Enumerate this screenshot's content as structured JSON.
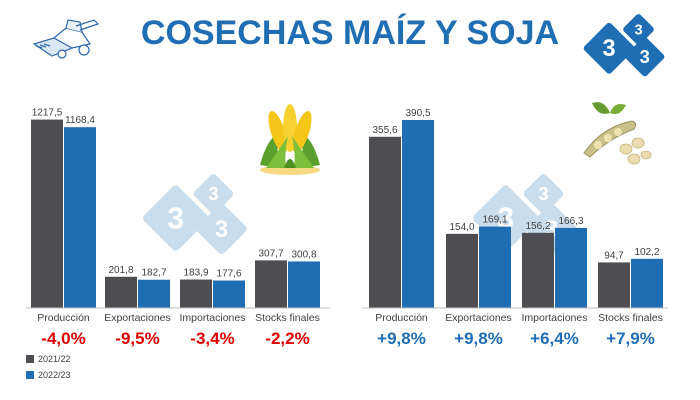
{
  "header": {
    "title": "COSECHAS MAÍZ Y SOJA"
  },
  "logo": {
    "digits": [
      "3",
      "3",
      "3"
    ],
    "color": "#1f6eb3"
  },
  "colors": {
    "title": "#1f6eb3",
    "series_2021": "#4d4d52",
    "series_2022": "#1f6eb3",
    "neg": "#e00000",
    "pos": "#1f6eb3",
    "label": "#404040",
    "watermark": "#9fc2e0"
  },
  "legend": {
    "items": [
      "2021/22",
      "2022/23"
    ]
  },
  "icons": {
    "harvester": "harvester-icon",
    "corn": "corn-icon",
    "soy": "soybean-icon"
  },
  "chart_data": [
    {
      "type": "bar",
      "title": "",
      "categories": [
        "Producción",
        "Exportaciones",
        "Importaciones",
        "Stocks finales"
      ],
      "series": [
        {
          "name": "2021/22",
          "values": [
            1217.5,
            201.8,
            183.9,
            307.7
          ],
          "labels": [
            "1217,5",
            "201,8",
            "183,9",
            "307,7"
          ]
        },
        {
          "name": "2022/23",
          "values": [
            1168.4,
            182.7,
            177.6,
            300.8
          ],
          "labels": [
            "1168,4",
            "182,7",
            "177,6",
            "300,8"
          ]
        }
      ],
      "changes": [
        "-4,0%",
        "-9,5%",
        "-3,4%",
        "-2,2%"
      ],
      "ylim": [
        0,
        1260
      ]
    },
    {
      "type": "bar",
      "title": "",
      "categories": [
        "Producción",
        "Exportaciones",
        "Importaciones",
        "Stocks finales"
      ],
      "series": [
        {
          "name": "2021/22",
          "values": [
            355.6,
            154.0,
            156.2,
            94.7
          ],
          "labels": [
            "355,6",
            "154,0",
            "156,2",
            "94,7"
          ]
        },
        {
          "name": "2022/23",
          "values": [
            390.5,
            169.1,
            166.3,
            102.2
          ],
          "labels": [
            "390,5",
            "169,1",
            "166,3",
            "102,2"
          ]
        }
      ],
      "changes": [
        "+9,8%",
        "+9,8%",
        "+6,4%",
        "+7,9%"
      ],
      "ylim": [
        0,
        405
      ]
    }
  ]
}
